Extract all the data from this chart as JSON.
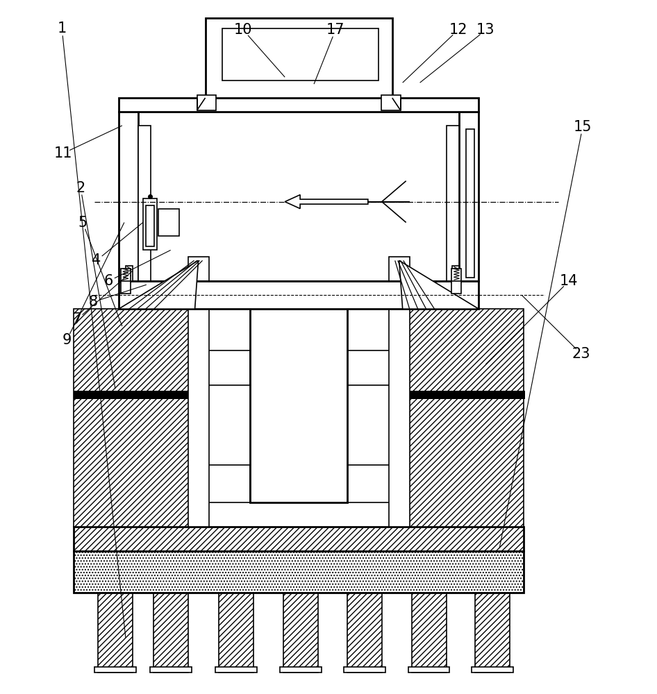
{
  "bg_color": "#ffffff",
  "lc": "#000000",
  "fig_width": 9.46,
  "fig_height": 10.0,
  "lw": 1.2,
  "lw2": 2.0
}
